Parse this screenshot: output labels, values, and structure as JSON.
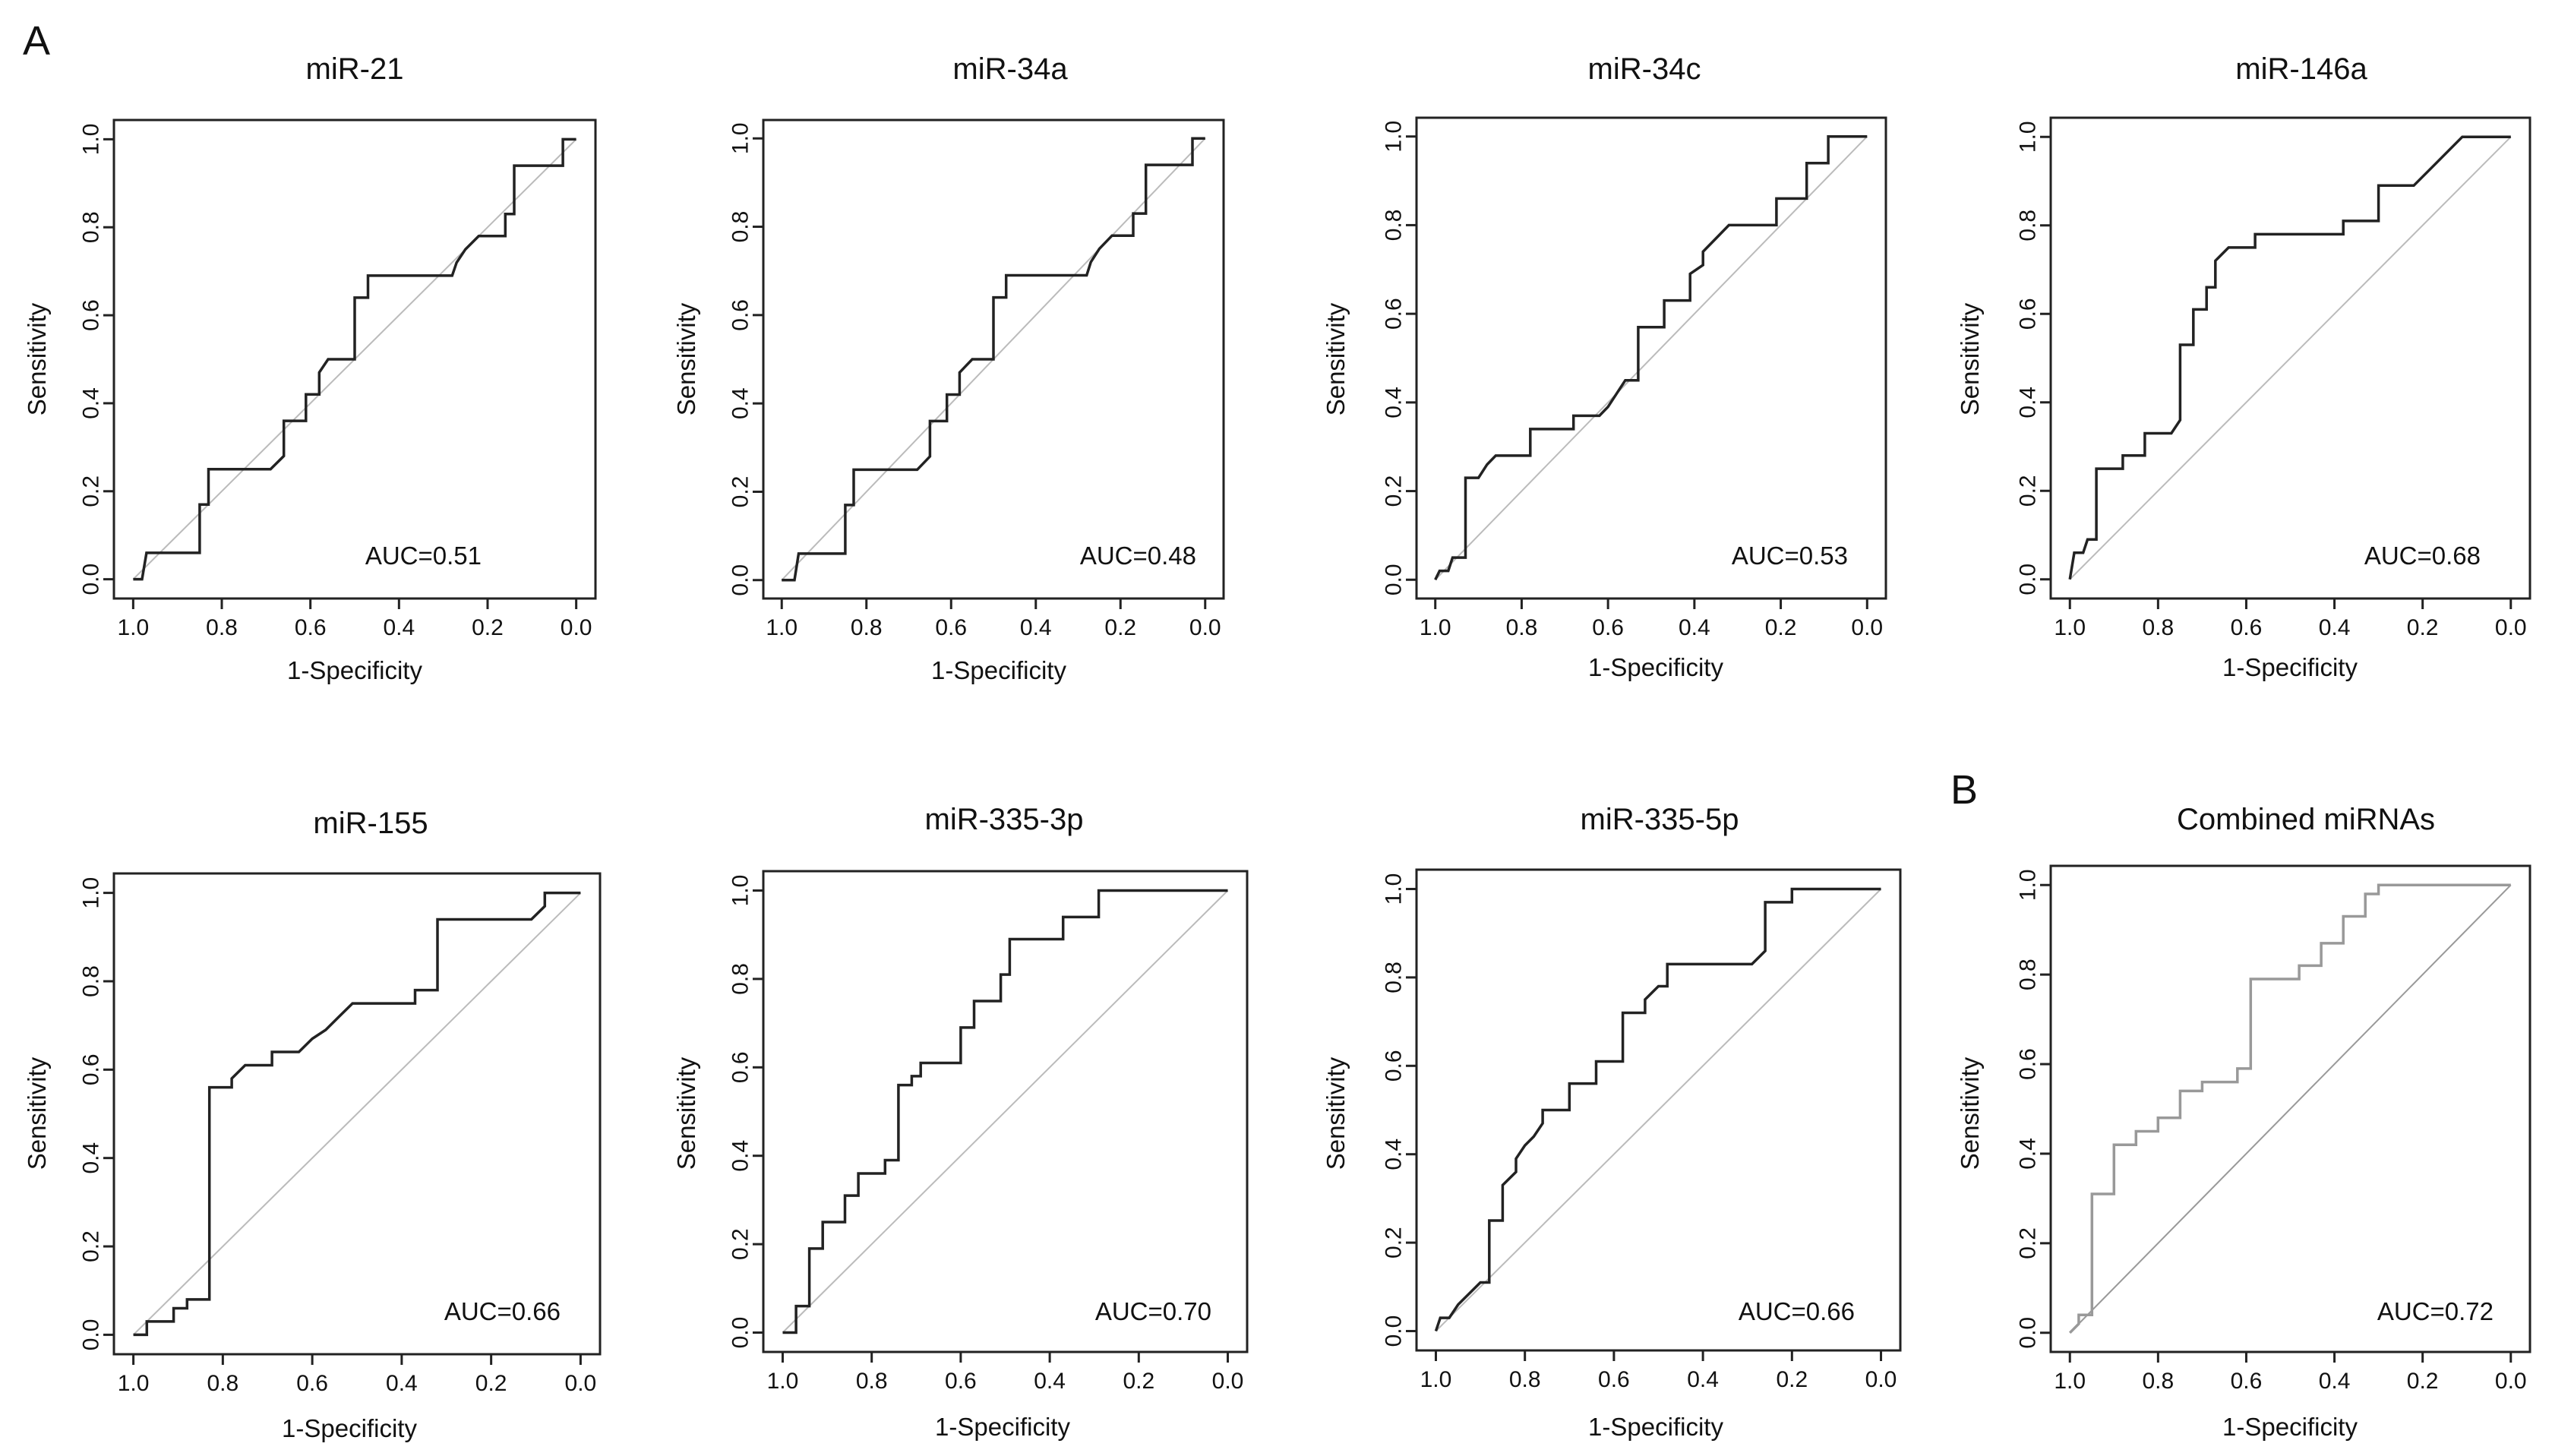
{
  "panel_labels": [
    "A",
    "B"
  ],
  "chart_data": [
    {
      "type": "line",
      "title": "miR-21",
      "xlabel": "1-Specificity",
      "ylabel": "Sensitivity",
      "xlim": [
        1.0,
        0.0
      ],
      "ylim": [
        0.0,
        1.0
      ],
      "x_reversed": true,
      "xticks": [
        "1.0",
        "0.8",
        "0.6",
        "0.4",
        "0.2",
        "0.0"
      ],
      "yticks": [
        "0.0",
        "0.2",
        "0.4",
        "0.6",
        "0.8",
        "1.0"
      ],
      "annotation": "AUC=0.51",
      "line_color": "#222222",
      "diagonal_color": "#bbbbbb",
      "roc_points": [
        [
          1.0,
          0.0
        ],
        [
          0.98,
          0.0
        ],
        [
          0.97,
          0.06
        ],
        [
          0.85,
          0.06
        ],
        [
          0.85,
          0.17
        ],
        [
          0.83,
          0.17
        ],
        [
          0.83,
          0.25
        ],
        [
          0.69,
          0.25
        ],
        [
          0.66,
          0.28
        ],
        [
          0.66,
          0.36
        ],
        [
          0.61,
          0.36
        ],
        [
          0.61,
          0.42
        ],
        [
          0.58,
          0.42
        ],
        [
          0.58,
          0.47
        ],
        [
          0.56,
          0.5
        ],
        [
          0.5,
          0.5
        ],
        [
          0.5,
          0.64
        ],
        [
          0.47,
          0.64
        ],
        [
          0.47,
          0.69
        ],
        [
          0.28,
          0.69
        ],
        [
          0.27,
          0.72
        ],
        [
          0.25,
          0.75
        ],
        [
          0.22,
          0.78
        ],
        [
          0.16,
          0.78
        ],
        [
          0.16,
          0.83
        ],
        [
          0.14,
          0.83
        ],
        [
          0.14,
          0.94
        ],
        [
          0.03,
          0.94
        ],
        [
          0.03,
          1.0
        ],
        [
          0.0,
          1.0
        ]
      ]
    },
    {
      "type": "line",
      "title": "miR-34a",
      "xlabel": "1-Specificity",
      "ylabel": "Sensitivity",
      "xlim": [
        1.0,
        0.0
      ],
      "ylim": [
        0.0,
        1.0
      ],
      "x_reversed": true,
      "xticks": [
        "1.0",
        "0.8",
        "0.6",
        "0.4",
        "0.2",
        "0.0"
      ],
      "yticks": [
        "0.0",
        "0.2",
        "0.4",
        "0.6",
        "0.8",
        "1.0"
      ],
      "annotation": "AUC=0.48",
      "line_color": "#222222",
      "diagonal_color": "#bbbbbb",
      "roc_points": [
        [
          1.0,
          0.0
        ],
        [
          0.97,
          0.0
        ],
        [
          0.96,
          0.06
        ],
        [
          0.85,
          0.06
        ],
        [
          0.85,
          0.17
        ],
        [
          0.83,
          0.17
        ],
        [
          0.83,
          0.25
        ],
        [
          0.68,
          0.25
        ],
        [
          0.65,
          0.28
        ],
        [
          0.65,
          0.36
        ],
        [
          0.61,
          0.36
        ],
        [
          0.61,
          0.42
        ],
        [
          0.58,
          0.42
        ],
        [
          0.58,
          0.47
        ],
        [
          0.55,
          0.5
        ],
        [
          0.5,
          0.5
        ],
        [
          0.5,
          0.64
        ],
        [
          0.47,
          0.64
        ],
        [
          0.47,
          0.69
        ],
        [
          0.28,
          0.69
        ],
        [
          0.27,
          0.72
        ],
        [
          0.25,
          0.75
        ],
        [
          0.22,
          0.78
        ],
        [
          0.17,
          0.78
        ],
        [
          0.17,
          0.83
        ],
        [
          0.14,
          0.83
        ],
        [
          0.14,
          0.94
        ],
        [
          0.03,
          0.94
        ],
        [
          0.03,
          1.0
        ],
        [
          0.0,
          1.0
        ]
      ]
    },
    {
      "type": "line",
      "title": "miR-34c",
      "xlabel": "1-Specificity",
      "ylabel": "Sensitivity",
      "xlim": [
        1.0,
        0.0
      ],
      "ylim": [
        0.0,
        1.0
      ],
      "x_reversed": true,
      "xticks": [
        "1.0",
        "0.8",
        "0.6",
        "0.4",
        "0.2",
        "0.0"
      ],
      "yticks": [
        "0.0",
        "0.2",
        "0.4",
        "0.6",
        "0.8",
        "1.0"
      ],
      "annotation": "AUC=0.53",
      "line_color": "#222222",
      "diagonal_color": "#bbbbbb",
      "roc_points": [
        [
          1.0,
          0.0
        ],
        [
          0.99,
          0.02
        ],
        [
          0.97,
          0.02
        ],
        [
          0.96,
          0.05
        ],
        [
          0.93,
          0.05
        ],
        [
          0.93,
          0.23
        ],
        [
          0.9,
          0.23
        ],
        [
          0.88,
          0.26
        ],
        [
          0.86,
          0.28
        ],
        [
          0.78,
          0.28
        ],
        [
          0.78,
          0.34
        ],
        [
          0.68,
          0.34
        ],
        [
          0.68,
          0.37
        ],
        [
          0.62,
          0.37
        ],
        [
          0.6,
          0.39
        ],
        [
          0.58,
          0.42
        ],
        [
          0.56,
          0.45
        ],
        [
          0.53,
          0.45
        ],
        [
          0.53,
          0.57
        ],
        [
          0.47,
          0.57
        ],
        [
          0.47,
          0.63
        ],
        [
          0.41,
          0.63
        ],
        [
          0.41,
          0.69
        ],
        [
          0.38,
          0.71
        ],
        [
          0.38,
          0.74
        ],
        [
          0.35,
          0.77
        ],
        [
          0.32,
          0.8
        ],
        [
          0.21,
          0.8
        ],
        [
          0.21,
          0.86
        ],
        [
          0.14,
          0.86
        ],
        [
          0.14,
          0.94
        ],
        [
          0.09,
          0.94
        ],
        [
          0.09,
          1.0
        ],
        [
          0.0,
          1.0
        ]
      ]
    },
    {
      "type": "line",
      "title": "miR-146a",
      "xlabel": "1-Specificity",
      "ylabel": "Sensitivity",
      "xlim": [
        1.0,
        0.0
      ],
      "ylim": [
        0.0,
        1.0
      ],
      "x_reversed": true,
      "xticks": [
        "1.0",
        "0.8",
        "0.6",
        "0.4",
        "0.2",
        "0.0"
      ],
      "yticks": [
        "0.0",
        "0.2",
        "0.4",
        "0.6",
        "0.8",
        "1.0"
      ],
      "annotation": "AUC=0.68",
      "line_color": "#222222",
      "diagonal_color": "#bbbbbb",
      "roc_points": [
        [
          1.0,
          0.0
        ],
        [
          0.99,
          0.06
        ],
        [
          0.97,
          0.06
        ],
        [
          0.96,
          0.09
        ],
        [
          0.94,
          0.09
        ],
        [
          0.94,
          0.25
        ],
        [
          0.88,
          0.25
        ],
        [
          0.88,
          0.28
        ],
        [
          0.83,
          0.28
        ],
        [
          0.83,
          0.33
        ],
        [
          0.77,
          0.33
        ],
        [
          0.75,
          0.36
        ],
        [
          0.75,
          0.53
        ],
        [
          0.72,
          0.53
        ],
        [
          0.72,
          0.61
        ],
        [
          0.69,
          0.61
        ],
        [
          0.69,
          0.66
        ],
        [
          0.67,
          0.66
        ],
        [
          0.67,
          0.72
        ],
        [
          0.64,
          0.75
        ],
        [
          0.58,
          0.75
        ],
        [
          0.58,
          0.78
        ],
        [
          0.38,
          0.78
        ],
        [
          0.38,
          0.81
        ],
        [
          0.3,
          0.81
        ],
        [
          0.3,
          0.89
        ],
        [
          0.22,
          0.89
        ],
        [
          0.19,
          0.92
        ],
        [
          0.17,
          0.94
        ],
        [
          0.14,
          0.97
        ],
        [
          0.11,
          1.0
        ],
        [
          0.0,
          1.0
        ]
      ]
    },
    {
      "type": "line",
      "title": "miR-155",
      "xlabel": "1-Specificity",
      "ylabel": "Sensitivity",
      "xlim": [
        1.0,
        0.0
      ],
      "ylim": [
        0.0,
        1.0
      ],
      "x_reversed": true,
      "xticks": [
        "1.0",
        "0.8",
        "0.6",
        "0.4",
        "0.2",
        "0.0"
      ],
      "yticks": [
        "0.0",
        "0.2",
        "0.4",
        "0.6",
        "0.8",
        "1.0"
      ],
      "annotation": "AUC=0.66",
      "line_color": "#222222",
      "diagonal_color": "#bbbbbb",
      "roc_points": [
        [
          1.0,
          0.0
        ],
        [
          0.97,
          0.0
        ],
        [
          0.97,
          0.03
        ],
        [
          0.91,
          0.03
        ],
        [
          0.91,
          0.06
        ],
        [
          0.88,
          0.06
        ],
        [
          0.88,
          0.08
        ],
        [
          0.83,
          0.08
        ],
        [
          0.83,
          0.56
        ],
        [
          0.78,
          0.56
        ],
        [
          0.78,
          0.58
        ],
        [
          0.75,
          0.61
        ],
        [
          0.69,
          0.61
        ],
        [
          0.69,
          0.64
        ],
        [
          0.63,
          0.64
        ],
        [
          0.6,
          0.67
        ],
        [
          0.57,
          0.69
        ],
        [
          0.54,
          0.72
        ],
        [
          0.51,
          0.75
        ],
        [
          0.37,
          0.75
        ],
        [
          0.37,
          0.78
        ],
        [
          0.32,
          0.78
        ],
        [
          0.32,
          0.94
        ],
        [
          0.11,
          0.94
        ],
        [
          0.08,
          0.97
        ],
        [
          0.08,
          1.0
        ],
        [
          0.0,
          1.0
        ]
      ]
    },
    {
      "type": "line",
      "title": "miR-335-3p",
      "xlabel": "1-Specificity",
      "ylabel": "Sensitivity",
      "xlim": [
        1.0,
        0.0
      ],
      "ylim": [
        0.0,
        1.0
      ],
      "x_reversed": true,
      "xticks": [
        "1.0",
        "0.8",
        "0.6",
        "0.4",
        "0.2",
        "0.0"
      ],
      "yticks": [
        "0.0",
        "0.2",
        "0.4",
        "0.6",
        "0.8",
        "1.0"
      ],
      "annotation": "AUC=0.70",
      "line_color": "#222222",
      "diagonal_color": "#bbbbbb",
      "roc_points": [
        [
          1.0,
          0.0
        ],
        [
          0.97,
          0.0
        ],
        [
          0.97,
          0.06
        ],
        [
          0.94,
          0.06
        ],
        [
          0.94,
          0.19
        ],
        [
          0.91,
          0.19
        ],
        [
          0.91,
          0.25
        ],
        [
          0.86,
          0.25
        ],
        [
          0.86,
          0.31
        ],
        [
          0.83,
          0.31
        ],
        [
          0.83,
          0.36
        ],
        [
          0.77,
          0.36
        ],
        [
          0.77,
          0.39
        ],
        [
          0.74,
          0.39
        ],
        [
          0.74,
          0.56
        ],
        [
          0.71,
          0.56
        ],
        [
          0.71,
          0.58
        ],
        [
          0.69,
          0.58
        ],
        [
          0.69,
          0.61
        ],
        [
          0.6,
          0.61
        ],
        [
          0.6,
          0.69
        ],
        [
          0.57,
          0.69
        ],
        [
          0.57,
          0.75
        ],
        [
          0.51,
          0.75
        ],
        [
          0.51,
          0.81
        ],
        [
          0.49,
          0.81
        ],
        [
          0.49,
          0.89
        ],
        [
          0.37,
          0.89
        ],
        [
          0.37,
          0.94
        ],
        [
          0.29,
          0.94
        ],
        [
          0.29,
          1.0
        ],
        [
          0.0,
          1.0
        ]
      ]
    },
    {
      "type": "line",
      "title": "miR-335-5p",
      "xlabel": "1-Specificity",
      "ylabel": "Sensitivity",
      "xlim": [
        1.0,
        0.0
      ],
      "ylim": [
        0.0,
        1.0
      ],
      "x_reversed": true,
      "xticks": [
        "1.0",
        "0.8",
        "0.6",
        "0.4",
        "0.2",
        "0.0"
      ],
      "yticks": [
        "0.0",
        "0.2",
        "0.4",
        "0.6",
        "0.8",
        "1.0"
      ],
      "annotation": "AUC=0.66",
      "line_color": "#222222",
      "diagonal_color": "#bbbbbb",
      "roc_points": [
        [
          1.0,
          0.0
        ],
        [
          0.99,
          0.03
        ],
        [
          0.97,
          0.03
        ],
        [
          0.95,
          0.06
        ],
        [
          0.93,
          0.08
        ],
        [
          0.9,
          0.11
        ],
        [
          0.88,
          0.11
        ],
        [
          0.88,
          0.25
        ],
        [
          0.85,
          0.25
        ],
        [
          0.85,
          0.33
        ],
        [
          0.82,
          0.36
        ],
        [
          0.82,
          0.39
        ],
        [
          0.8,
          0.42
        ],
        [
          0.78,
          0.44
        ],
        [
          0.76,
          0.47
        ],
        [
          0.76,
          0.5
        ],
        [
          0.7,
          0.5
        ],
        [
          0.7,
          0.56
        ],
        [
          0.64,
          0.56
        ],
        [
          0.64,
          0.61
        ],
        [
          0.58,
          0.61
        ],
        [
          0.58,
          0.72
        ],
        [
          0.53,
          0.72
        ],
        [
          0.53,
          0.75
        ],
        [
          0.5,
          0.78
        ],
        [
          0.48,
          0.78
        ],
        [
          0.48,
          0.83
        ],
        [
          0.29,
          0.83
        ],
        [
          0.26,
          0.86
        ],
        [
          0.26,
          0.97
        ],
        [
          0.2,
          0.97
        ],
        [
          0.2,
          1.0
        ],
        [
          0.0,
          1.0
        ]
      ]
    },
    {
      "type": "line",
      "title": "Combined miRNAs",
      "xlabel": "1-Specificity",
      "ylabel": "Sensitivity",
      "xlim": [
        1.0,
        0.0
      ],
      "ylim": [
        0.0,
        1.0
      ],
      "x_reversed": true,
      "xticks": [
        "1.0",
        "0.8",
        "0.6",
        "0.4",
        "0.2",
        "0.0"
      ],
      "yticks": [
        "0.0",
        "0.2",
        "0.4",
        "0.6",
        "0.8",
        "1.0"
      ],
      "annotation": "AUC=0.72",
      "line_color": "#999999",
      "diagonal_color": "#999999",
      "roc_points": [
        [
          1.0,
          0.0
        ],
        [
          0.98,
          0.02
        ],
        [
          0.98,
          0.04
        ],
        [
          0.95,
          0.04
        ],
        [
          0.95,
          0.31
        ],
        [
          0.9,
          0.31
        ],
        [
          0.9,
          0.42
        ],
        [
          0.85,
          0.42
        ],
        [
          0.85,
          0.45
        ],
        [
          0.8,
          0.45
        ],
        [
          0.8,
          0.48
        ],
        [
          0.75,
          0.48
        ],
        [
          0.75,
          0.54
        ],
        [
          0.7,
          0.54
        ],
        [
          0.7,
          0.56
        ],
        [
          0.62,
          0.56
        ],
        [
          0.62,
          0.59
        ],
        [
          0.59,
          0.59
        ],
        [
          0.59,
          0.79
        ],
        [
          0.48,
          0.79
        ],
        [
          0.48,
          0.82
        ],
        [
          0.43,
          0.82
        ],
        [
          0.43,
          0.87
        ],
        [
          0.38,
          0.87
        ],
        [
          0.38,
          0.93
        ],
        [
          0.33,
          0.93
        ],
        [
          0.33,
          0.98
        ],
        [
          0.3,
          0.98
        ],
        [
          0.3,
          1.0
        ],
        [
          0.0,
          1.0
        ]
      ]
    }
  ]
}
